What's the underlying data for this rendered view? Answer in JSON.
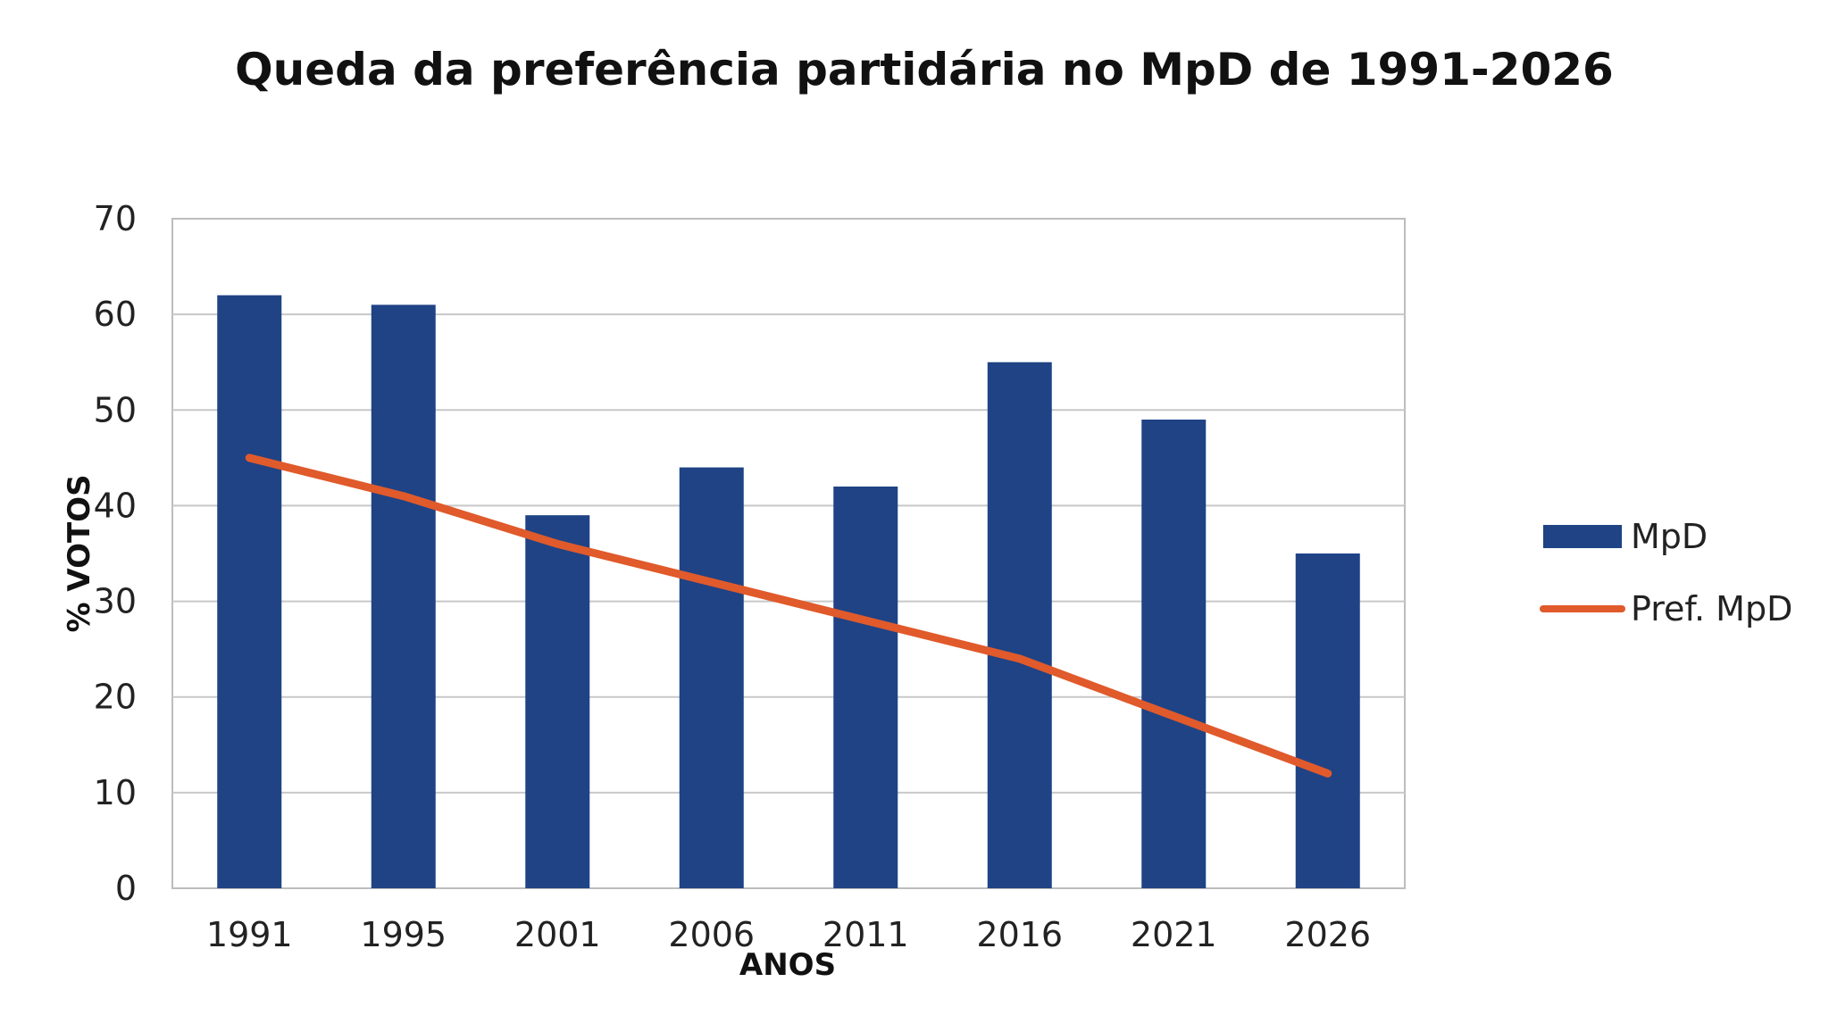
{
  "chart_data": {
    "type": "bar",
    "title": "Queda da preferência partidária no MpD de 1991-2026",
    "xlabel": "ANOS",
    "ylabel": "% VOTOS",
    "categories": [
      "1991",
      "1995",
      "2001",
      "2006",
      "2011",
      "2016",
      "2021",
      "2026"
    ],
    "series": [
      {
        "name": "MpD",
        "type": "bar",
        "color": "#1f4385",
        "values": [
          62,
          61,
          39,
          44,
          42,
          55,
          49,
          35
        ]
      },
      {
        "name": "Pref. MpD",
        "type": "line",
        "color": "#e05a2b",
        "values": [
          45,
          41,
          36,
          32,
          28,
          24,
          18,
          12
        ]
      }
    ],
    "ylim": [
      0,
      70
    ],
    "yticks": [
      "0",
      "10",
      "20",
      "30",
      "40",
      "50",
      "60",
      "70"
    ],
    "grid": true,
    "legend_position": "right"
  }
}
